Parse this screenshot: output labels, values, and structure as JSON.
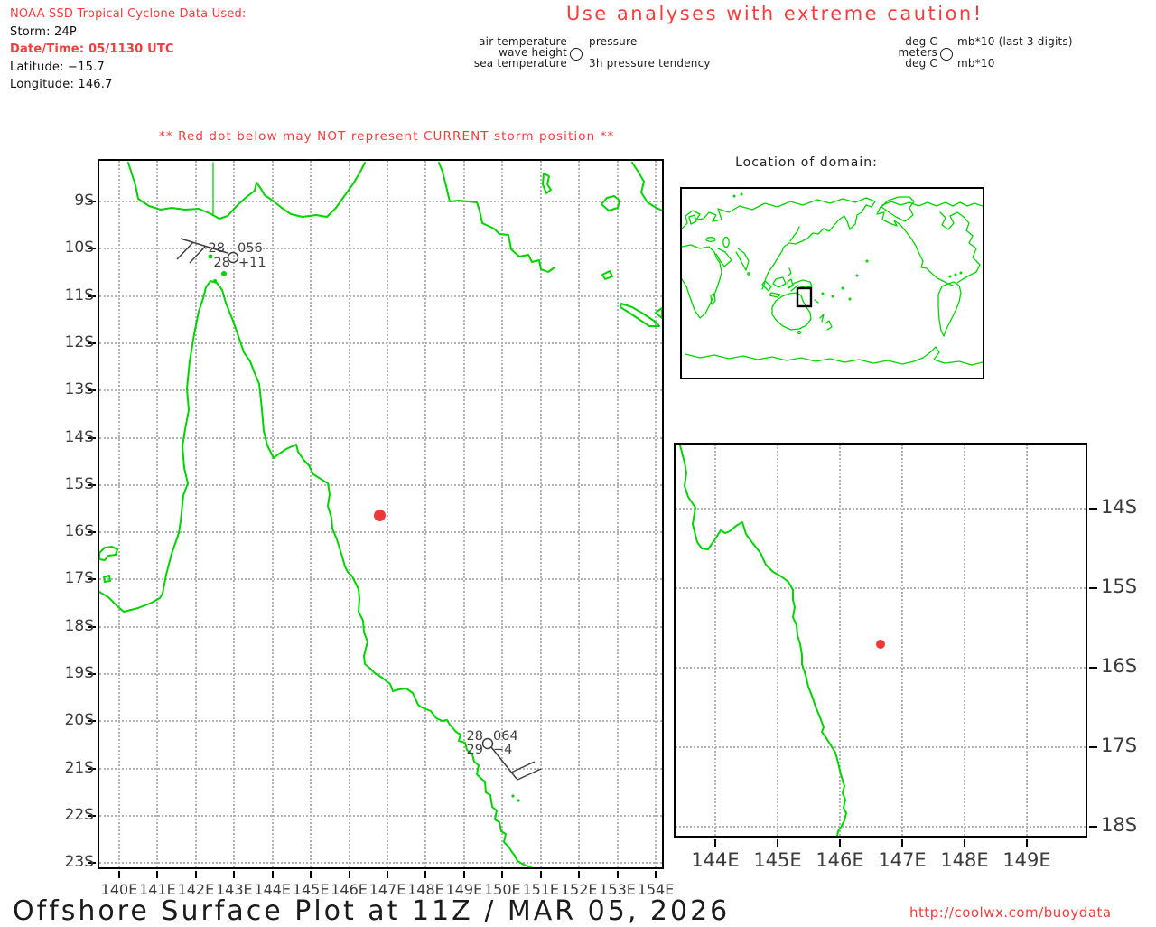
{
  "header": {
    "info": [
      "NOAA SSD Tropical Cyclone Data Used:",
      "Storm: 24P",
      "Date/Time: 05/1130 UTC",
      "Latitude: −15.7",
      "Longitude: 146.7"
    ],
    "caution": "Use analyses with extreme caution!",
    "legend_plot": {
      "left": [
        "air temperature",
        "wave height",
        "sea temperature"
      ],
      "right": [
        "pressure",
        "3h pressure tendency"
      ]
    },
    "legend_units": {
      "left": [
        "deg C",
        "meters",
        "deg C"
      ],
      "right": [
        "mb*10 (last 3 digits)",
        "mb*10"
      ]
    }
  },
  "warning": "** Red dot below may NOT represent CURRENT storm position **",
  "main_map": {
    "x_labels": [
      "140E",
      "141E",
      "142E",
      "143E",
      "144E",
      "145E",
      "146E",
      "147E",
      "148E",
      "149E",
      "150E",
      "151E",
      "152E",
      "153E",
      "154E"
    ],
    "y_labels": [
      "9S",
      "10S",
      "11S",
      "12S",
      "13S",
      "14S",
      "15S",
      "16S",
      "17S",
      "18S",
      "19S",
      "20S",
      "21S",
      "22S",
      "23S"
    ],
    "stations": [
      {
        "air_temp": "28",
        "pressure": "056",
        "sea_temp": "28",
        "tendency": "+11"
      },
      {
        "air_temp": "28",
        "pressure": "064",
        "sea_temp": "29",
        "tendency": "−4"
      }
    ],
    "storm_dot": {
      "latitude": "−15.7",
      "longitude": "146.7"
    }
  },
  "world_inset": {
    "title": "Location of domain:"
  },
  "zoom_inset": {
    "x_labels": [
      "144E",
      "145E",
      "146E",
      "147E",
      "148E",
      "149E"
    ],
    "y_labels": [
      "14S",
      "15S",
      "16S",
      "17S",
      "18S"
    ]
  },
  "footer": {
    "title": "Offshore Surface Plot at 11Z / MAR 05, 2026",
    "url": "http://coolwx.com/buoydata"
  },
  "colors": {
    "red": "#f63c3c",
    "coast_green": "#00d400",
    "grid_gray": "#b3b3b3",
    "axis_text": "#3b3b3b",
    "storm_dot": "#ee3939"
  }
}
